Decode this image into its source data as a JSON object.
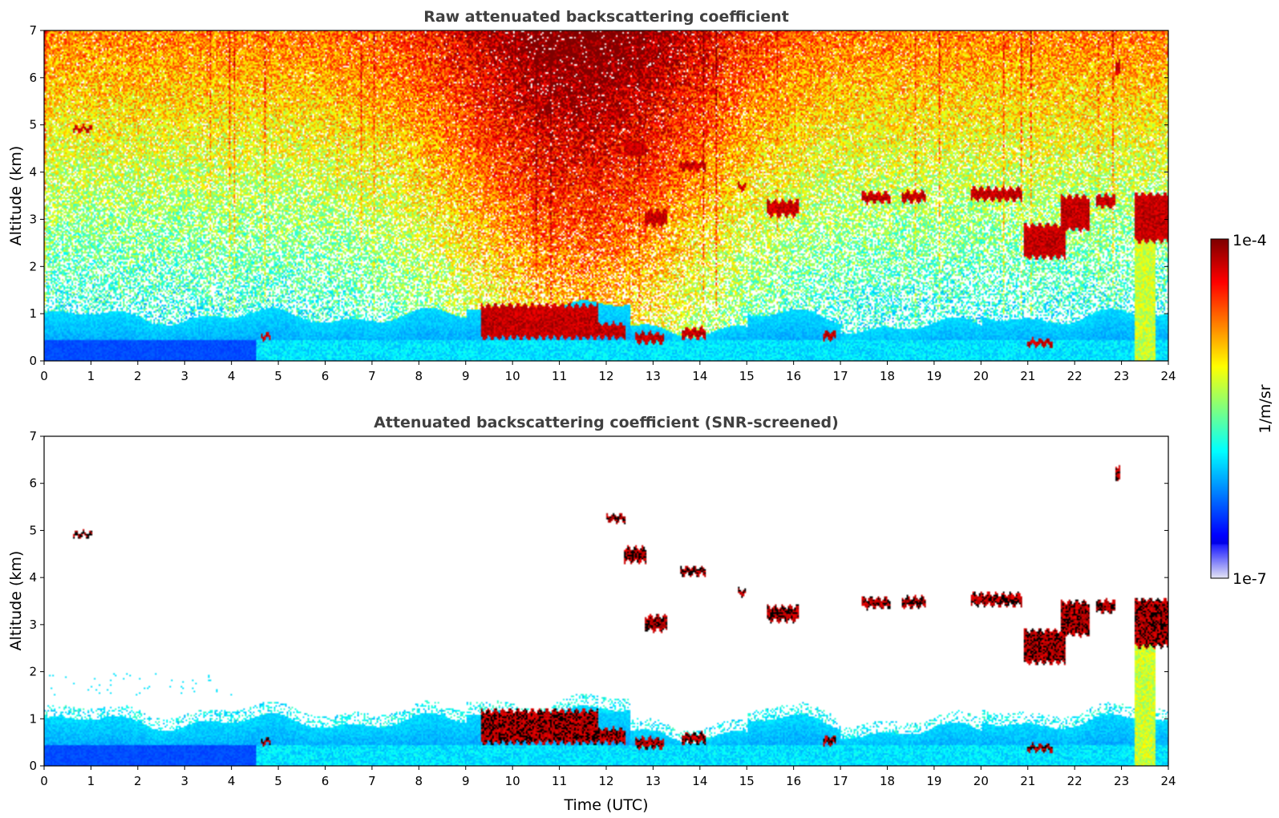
{
  "chart_data": [
    {
      "type": "heatmap",
      "title": "Raw attenuated backscattering coefficient",
      "xlabel": "",
      "ylabel": "Altitude (km)",
      "xlim": [
        0,
        24
      ],
      "ylim": [
        0,
        7
      ],
      "xticks": [
        "0",
        "1",
        "2",
        "3",
        "4",
        "5",
        "6",
        "7",
        "8",
        "9",
        "10",
        "11",
        "12",
        "13",
        "14",
        "15",
        "16",
        "17",
        "18",
        "19",
        "20",
        "21",
        "22",
        "23",
        "24"
      ],
      "yticks": [
        "0",
        "1",
        "2",
        "3",
        "4",
        "5",
        "6",
        "7"
      ],
      "field": "raw",
      "cloud_layers": [
        {
          "t0": 0.6,
          "t1": 1.0,
          "alt": 4.93,
          "thick": 0.05
        },
        {
          "t0": 9.3,
          "t1": 11.8,
          "alt": 0.85,
          "thick": 0.35
        },
        {
          "t0": 11.8,
          "t1": 12.4,
          "alt": 0.65,
          "thick": 0.15
        },
        {
          "t0": 12.6,
          "t1": 13.2,
          "alt": 0.5,
          "thick": 0.1
        },
        {
          "t0": 13.6,
          "t1": 14.1,
          "alt": 0.6,
          "thick": 0.1
        },
        {
          "t0": 12.35,
          "t1": 12.85,
          "alt": 4.5,
          "thick": 0.15
        },
        {
          "t0": 12.0,
          "t1": 12.4,
          "alt": 5.28,
          "thick": 0.07
        },
        {
          "t0": 12.8,
          "t1": 13.3,
          "alt": 3.05,
          "thick": 0.15
        },
        {
          "t0": 13.55,
          "t1": 14.1,
          "alt": 4.15,
          "thick": 0.08
        },
        {
          "t0": 14.8,
          "t1": 14.95,
          "alt": 3.7,
          "thick": 0.06
        },
        {
          "t0": 15.4,
          "t1": 16.1,
          "alt": 3.25,
          "thick": 0.15
        },
        {
          "t0": 17.45,
          "t1": 18.05,
          "alt": 3.48,
          "thick": 0.1
        },
        {
          "t0": 18.3,
          "t1": 18.8,
          "alt": 3.5,
          "thick": 0.1
        },
        {
          "t0": 19.75,
          "t1": 20.85,
          "alt": 3.55,
          "thick": 0.12
        },
        {
          "t0": 20.9,
          "t1": 21.8,
          "alt": 2.55,
          "thick": 0.35
        },
        {
          "t0": 21.7,
          "t1": 22.3,
          "alt": 3.15,
          "thick": 0.35
        },
        {
          "t0": 22.45,
          "t1": 22.85,
          "alt": 3.4,
          "thick": 0.12
        },
        {
          "t0": 22.85,
          "t1": 22.95,
          "alt": 6.25,
          "thick": 0.15
        },
        {
          "t0": 23.25,
          "t1": 24.0,
          "alt": 3.05,
          "thick": 0.5
        },
        {
          "t0": 20.95,
          "t1": 21.5,
          "alt": 0.4,
          "thick": 0.06
        },
        {
          "t0": 4.6,
          "t1": 4.8,
          "alt": 0.53,
          "thick": 0.05
        },
        {
          "t0": 16.6,
          "t1": 16.9,
          "alt": 0.55,
          "thick": 0.08
        }
      ]
    },
    {
      "type": "heatmap",
      "title": "Attenuated backscattering coefficient (SNR-screened)",
      "xlabel": "Time (UTC)",
      "ylabel": "Altitude (km)",
      "xlim": [
        0,
        24
      ],
      "ylim": [
        0,
        7
      ],
      "xticks": [
        "0",
        "1",
        "2",
        "3",
        "4",
        "5",
        "6",
        "7",
        "8",
        "9",
        "10",
        "11",
        "12",
        "13",
        "14",
        "15",
        "16",
        "17",
        "18",
        "19",
        "20",
        "21",
        "22",
        "23",
        "24"
      ],
      "yticks": [
        "0",
        "1",
        "2",
        "3",
        "4",
        "5",
        "6",
        "7"
      ],
      "field": "snr_screened"
    }
  ],
  "colorbar": {
    "label": "1/m/sr",
    "max_label": "1e-4",
    "min_label": "1e-7",
    "scale": "log",
    "colormap": "jet"
  }
}
